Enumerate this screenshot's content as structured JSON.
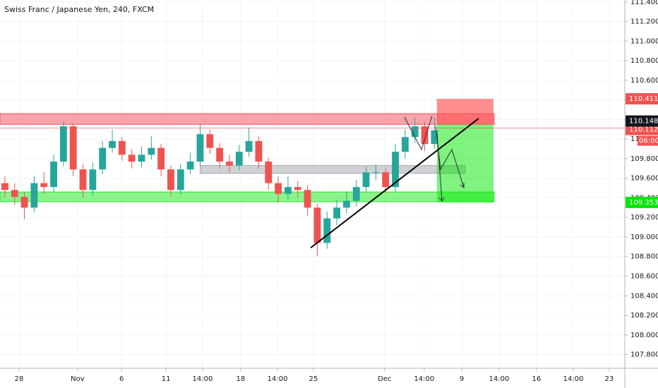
{
  "chart_data": {
    "type": "candlestick",
    "title": "Swiss Franc / Japanese Yen, 240, FXCM",
    "xlim": [
      0,
      256
    ],
    "ylim": [
      107.66,
      111.42
    ],
    "grid": true,
    "up_color": "#26a69a",
    "down_color": "#ef5350",
    "x": [
      2,
      6,
      10,
      14,
      18,
      22,
      26,
      30,
      34,
      38,
      42,
      46,
      50,
      54,
      58,
      62,
      66,
      70,
      74,
      78,
      82,
      86,
      90,
      94,
      98,
      102,
      106,
      110,
      114,
      118,
      122,
      126,
      130,
      134,
      138,
      142,
      146,
      150,
      154,
      158,
      162,
      166,
      170,
      174,
      178
    ],
    "open": [
      109.55,
      109.48,
      109.41,
      109.3,
      109.55,
      109.51,
      109.77,
      110.13,
      109.69,
      109.48,
      109.69,
      109.91,
      109.98,
      109.84,
      109.77,
      109.84,
      109.91,
      109.69,
      109.48,
      109.69,
      109.77,
      110.05,
      109.91,
      109.77,
      109.73,
      109.87,
      109.98,
      109.77,
      109.55,
      109.44,
      109.51,
      109.48,
      109.3,
      108.94,
      109.19,
      109.3,
      109.37,
      109.51,
      109.66,
      109.66,
      109.51,
      109.87,
      110.02,
      110.13,
      109.95
    ],
    "high": [
      109.62,
      109.55,
      109.46,
      109.62,
      109.66,
      109.84,
      110.18,
      110.16,
      109.74,
      109.76,
      109.98,
      110.1,
      110.02,
      109.9,
      109.92,
      110.03,
      109.95,
      109.73,
      109.75,
      109.86,
      110.15,
      110.1,
      109.96,
      109.84,
      109.94,
      110.12,
      110.03,
      109.81,
      109.62,
      109.62,
      109.57,
      109.53,
      109.34,
      109.26,
      109.38,
      109.47,
      109.58,
      109.72,
      109.74,
      109.7,
      109.95,
      110.1,
      110.22,
      110.18,
      110.22
    ],
    "low": [
      109.4,
      109.33,
      109.18,
      109.25,
      109.44,
      109.46,
      109.72,
      109.62,
      109.4,
      109.42,
      109.64,
      109.86,
      109.78,
      109.7,
      109.71,
      109.79,
      109.62,
      109.41,
      109.43,
      109.64,
      109.72,
      109.85,
      109.7,
      109.66,
      109.68,
      109.82,
      109.7,
      109.48,
      109.35,
      109.38,
      109.4,
      109.22,
      108.8,
      108.88,
      109.12,
      109.24,
      109.31,
      109.45,
      109.58,
      109.45,
      109.46,
      109.8,
      109.96,
      109.88,
      109.9
    ],
    "close": [
      109.48,
      109.41,
      109.3,
      109.55,
      109.51,
      109.77,
      110.13,
      109.69,
      109.48,
      109.69,
      109.91,
      109.98,
      109.84,
      109.77,
      109.84,
      109.91,
      109.69,
      109.48,
      109.69,
      109.77,
      110.05,
      109.91,
      109.77,
      109.73,
      109.87,
      109.98,
      109.77,
      109.55,
      109.44,
      109.51,
      109.48,
      109.3,
      108.94,
      109.19,
      109.3,
      109.37,
      109.51,
      109.66,
      109.66,
      109.51,
      109.87,
      110.02,
      110.13,
      109.95,
      110.09
    ],
    "xticks": [
      {
        "value": 7.8,
        "label": "28"
      },
      {
        "value": 31.8,
        "label": "Nov"
      },
      {
        "value": 49.8,
        "label": "6"
      },
      {
        "value": 68,
        "label": "11"
      },
      {
        "value": 83,
        "label": "14:00"
      },
      {
        "value": 98.6,
        "label": "18"
      },
      {
        "value": 113.7,
        "label": "14:00"
      },
      {
        "value": 128.4,
        "label": "25"
      },
      {
        "value": 157.6,
        "label": "Dec"
      },
      {
        "value": 173.8,
        "label": "14:00"
      },
      {
        "value": 189.2,
        "label": "9"
      },
      {
        "value": 204.5,
        "label": "14:00"
      },
      {
        "value": 219.8,
        "label": "16"
      },
      {
        "value": 234.9,
        "label": "14:00"
      },
      {
        "value": 249.6,
        "label": "23"
      }
    ],
    "yticks": [
      {
        "value": 107.8,
        "label": "107.800"
      },
      {
        "value": 108,
        "label": "108.000"
      },
      {
        "value": 108.2,
        "label": "108.200"
      },
      {
        "value": 108.4,
        "label": "108.400"
      },
      {
        "value": 108.6,
        "label": "108.600"
      },
      {
        "value": 108.8,
        "label": "108.800"
      },
      {
        "value": 109,
        "label": "109.000"
      },
      {
        "value": 109.2,
        "label": "109.200"
      },
      {
        "value": 109.4,
        "label": "109.400"
      },
      {
        "value": 109.6,
        "label": "109.600"
      },
      {
        "value": 109.8,
        "label": "109.800"
      },
      {
        "value": 110,
        "label": "110.000"
      },
      {
        "value": 110.2,
        "label": "110.200"
      },
      {
        "value": 110.4,
        "label": "110.400"
      },
      {
        "value": 110.6,
        "label": "110.600"
      },
      {
        "value": 110.8,
        "label": "110.800"
      },
      {
        "value": 111,
        "label": "111.000"
      },
      {
        "value": 111.2,
        "label": "111.200"
      },
      {
        "value": 111.4,
        "label": "111.400"
      }
    ],
    "zones": [
      {
        "x": [
          0,
          202.5
        ],
        "y": [
          110.15,
          110.26
        ],
        "color": "#f23645"
      },
      {
        "x": [
          0,
          202.5
        ],
        "y": [
          109.36,
          109.46
        ],
        "color": "#00e600"
      },
      {
        "x": [
          82,
          190.6
        ],
        "y": [
          109.65,
          109.73
        ],
        "color": "#9598a1"
      }
    ],
    "trendline": {
      "x": [
        127.3,
        196.1
      ],
      "y": [
        108.89,
        110.21
      ],
      "color": "#000000"
    },
    "position": {
      "x": [
        179,
        202.2
      ],
      "entry": 110.148,
      "stop": 110.411,
      "target": 109.353
    },
    "last_price": 110.112,
    "countdown": "06:00"
  }
}
